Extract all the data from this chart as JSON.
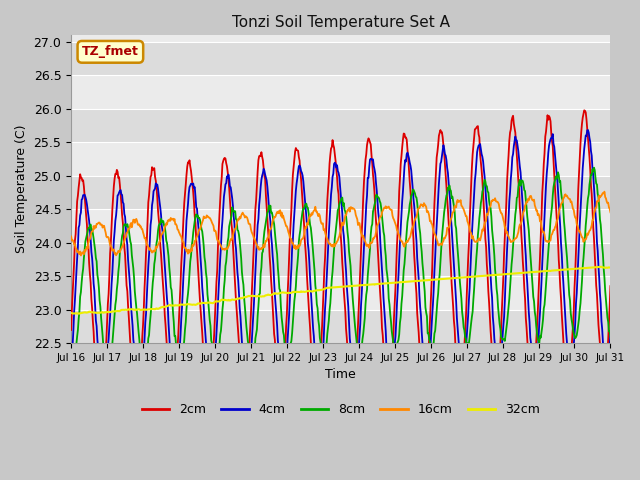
{
  "title": "Tonzi Soil Temperature Set A",
  "xlabel": "Time",
  "ylabel": "Soil Temperature (C)",
  "ylim": [
    22.5,
    27.1
  ],
  "xlim": [
    0,
    360
  ],
  "annotation_text": "TZ_fmet",
  "annotation_color": "#aa0000",
  "annotation_bg": "#ffffcc",
  "annotation_border": "#cc8800",
  "colors": {
    "2cm": "#dd0000",
    "4cm": "#0000cc",
    "8cm": "#00aa00",
    "16cm": "#ff8800",
    "32cm": "#eeee00"
  },
  "xtick_labels": [
    "Jul 16",
    "Jul 17",
    "Jul 18",
    "Jul 19",
    "Jul 20",
    "Jul 21",
    "Jul 22",
    "Jul 23",
    "Jul 24",
    "Jul 25",
    "Jul 26",
    "Jul 27",
    "Jul 28",
    "Jul 29",
    "Jul 30",
    "Jul 31"
  ],
  "xtick_positions": [
    0,
    24,
    48,
    72,
    96,
    120,
    144,
    168,
    192,
    216,
    240,
    264,
    288,
    312,
    336,
    360
  ],
  "n_points": 721,
  "hours_total": 360,
  "band_colors": [
    "#dcdcdc",
    "#ebebeb"
  ],
  "fig_bg": "#c8c8c8",
  "plot_bg": "#f0f0f0"
}
